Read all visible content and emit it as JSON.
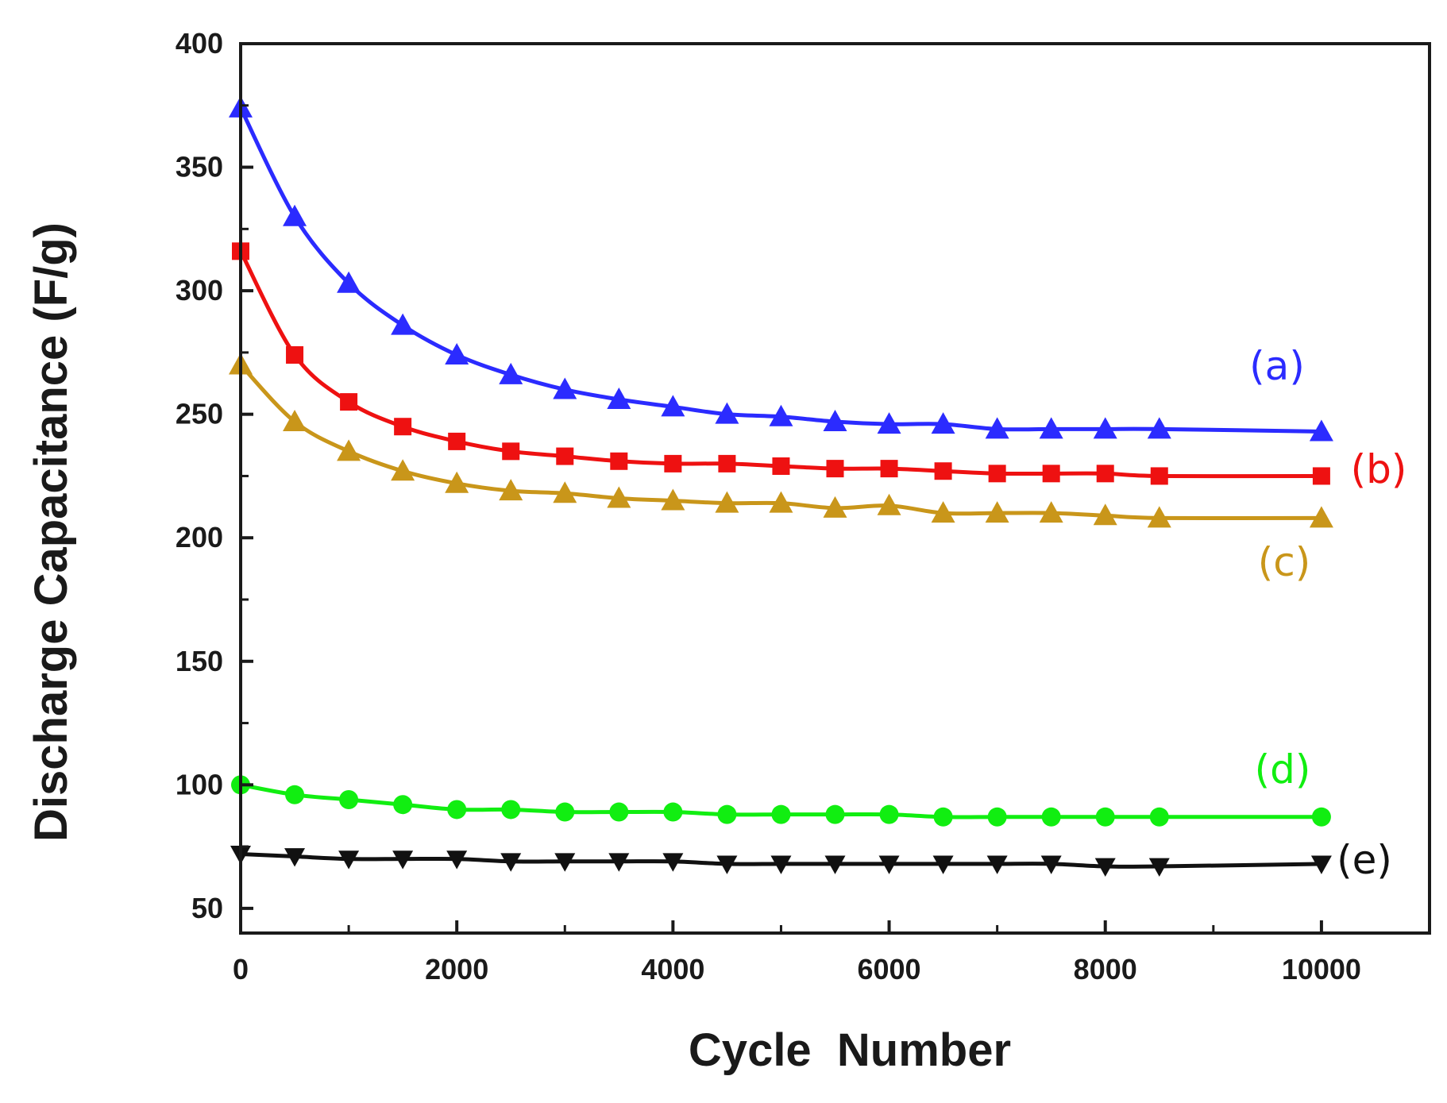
{
  "chart_data": {
    "type": "line",
    "xlabel": "Cycle  Number",
    "ylabel": "Discharge Capacitance (F/g)",
    "xlim": [
      0,
      11000
    ],
    "ylim": [
      40,
      400
    ],
    "x_ticks": [
      0,
      2000,
      4000,
      6000,
      8000,
      10000
    ],
    "x_tick_labels": [
      "0",
      "2000",
      "4000",
      "6000",
      "8000",
      "10000"
    ],
    "y_ticks": [
      50,
      100,
      150,
      200,
      250,
      300,
      350,
      400
    ],
    "y_tick_labels": [
      "50",
      "100",
      "150",
      "200",
      "250",
      "300",
      "350",
      "400"
    ],
    "grid": false,
    "series": [
      {
        "name": "(a)",
        "color": "#2b2bff",
        "marker": "triangle-up",
        "x": [
          0,
          500,
          1000,
          1500,
          2000,
          2500,
          3000,
          3500,
          4000,
          4500,
          5000,
          5500,
          6000,
          6500,
          7000,
          7500,
          8000,
          8500,
          10000
        ],
        "values": [
          374,
          330,
          303,
          286,
          274,
          266,
          260,
          256,
          253,
          250,
          249,
          247,
          246,
          246,
          244,
          244,
          244,
          244,
          243
        ]
      },
      {
        "name": "(b)",
        "color": "#ee1111",
        "marker": "square",
        "x": [
          0,
          500,
          1000,
          1500,
          2000,
          2500,
          3000,
          3500,
          4000,
          4500,
          5000,
          5500,
          6000,
          6500,
          7000,
          7500,
          8000,
          8500,
          10000
        ],
        "values": [
          316,
          274,
          255,
          245,
          239,
          235,
          233,
          231,
          230,
          230,
          229,
          228,
          228,
          227,
          226,
          226,
          226,
          225,
          225
        ]
      },
      {
        "name": "(c)",
        "color": "#c9961a",
        "marker": "triangle-up",
        "x": [
          0,
          500,
          1000,
          1500,
          2000,
          2500,
          3000,
          3500,
          4000,
          4500,
          5000,
          5500,
          6000,
          6500,
          7000,
          7500,
          8000,
          8500,
          10000
        ],
        "values": [
          270,
          247,
          235,
          227,
          222,
          219,
          218,
          216,
          215,
          214,
          214,
          212,
          213,
          210,
          210,
          210,
          209,
          208,
          208
        ]
      },
      {
        "name": "(d)",
        "color": "#11ee11",
        "marker": "circle",
        "x": [
          0,
          500,
          1000,
          1500,
          2000,
          2500,
          3000,
          3500,
          4000,
          4500,
          5000,
          5500,
          6000,
          6500,
          7000,
          7500,
          8000,
          8500,
          10000
        ],
        "values": [
          100,
          96,
          94,
          92,
          90,
          90,
          89,
          89,
          89,
          88,
          88,
          88,
          88,
          87,
          87,
          87,
          87,
          87,
          87
        ]
      },
      {
        "name": "(e)",
        "color": "#111111",
        "marker": "triangle-down",
        "x": [
          0,
          500,
          1000,
          1500,
          2000,
          2500,
          3000,
          3500,
          4000,
          4500,
          5000,
          5500,
          6000,
          6500,
          7000,
          7500,
          8000,
          8500,
          10000
        ],
        "values": [
          72,
          71,
          70,
          70,
          70,
          69,
          69,
          69,
          69,
          68,
          68,
          68,
          68,
          68,
          68,
          68,
          67,
          67,
          68
        ]
      }
    ]
  }
}
